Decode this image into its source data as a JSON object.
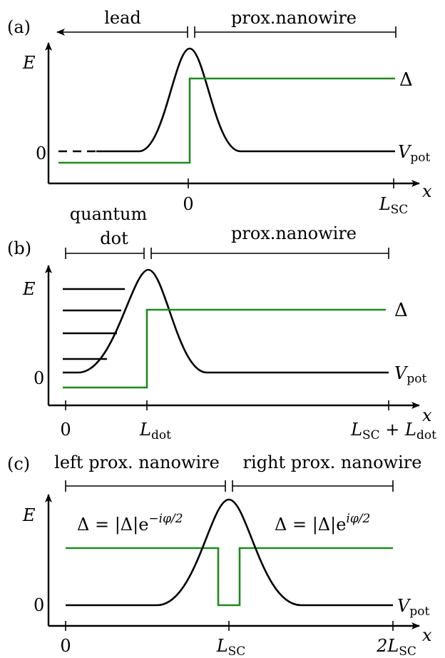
{
  "colors": {
    "potential": "#000000",
    "gap": "#1f8a1f"
  },
  "panel_a": {
    "tag": "(a)",
    "region_left": "lead",
    "region_right": "prox.nanowire",
    "e_label": "E",
    "zero_label": "0",
    "delta_label": "Δ",
    "vpot_main": "V",
    "vpot_sub": "pot",
    "x_label": "x",
    "tick_0": "0",
    "tick_lsc_main": "L",
    "tick_lsc_sub": "SC"
  },
  "panel_b": {
    "tag": "(b)",
    "region_left_line1": "quantum",
    "region_left_line2": "dot",
    "region_right": "prox.nanowire",
    "e_label": "E",
    "zero_label": "0",
    "delta_label": "Δ",
    "vpot_main": "V",
    "vpot_sub": "pot",
    "x_label": "x",
    "tick_0": "0",
    "tick_ldot_main": "L",
    "tick_ldot_sub": "dot",
    "tick_end_a_main": "L",
    "tick_end_a_sub": "SC",
    "tick_end_plus": " + ",
    "tick_end_b_main": "L",
    "tick_end_b_sub": "dot"
  },
  "panel_c": {
    "tag": "(c)",
    "region_left": "left prox. nanowire",
    "region_right": "right prox. nanowire",
    "e_label": "E",
    "zero_label": "0",
    "delta_left_base": "Δ = |Δ|e",
    "delta_left_exp": "−iφ/2",
    "delta_right_base": "Δ = |Δ|e",
    "delta_right_exp": "iφ/2",
    "vpot_main": "V",
    "vpot_sub": "pot",
    "x_label": "x",
    "tick_0": "0",
    "tick_lsc_main": "L",
    "tick_lsc_sub": "SC",
    "tick_2lsc_main": "2L",
    "tick_2lsc_sub": "SC"
  }
}
